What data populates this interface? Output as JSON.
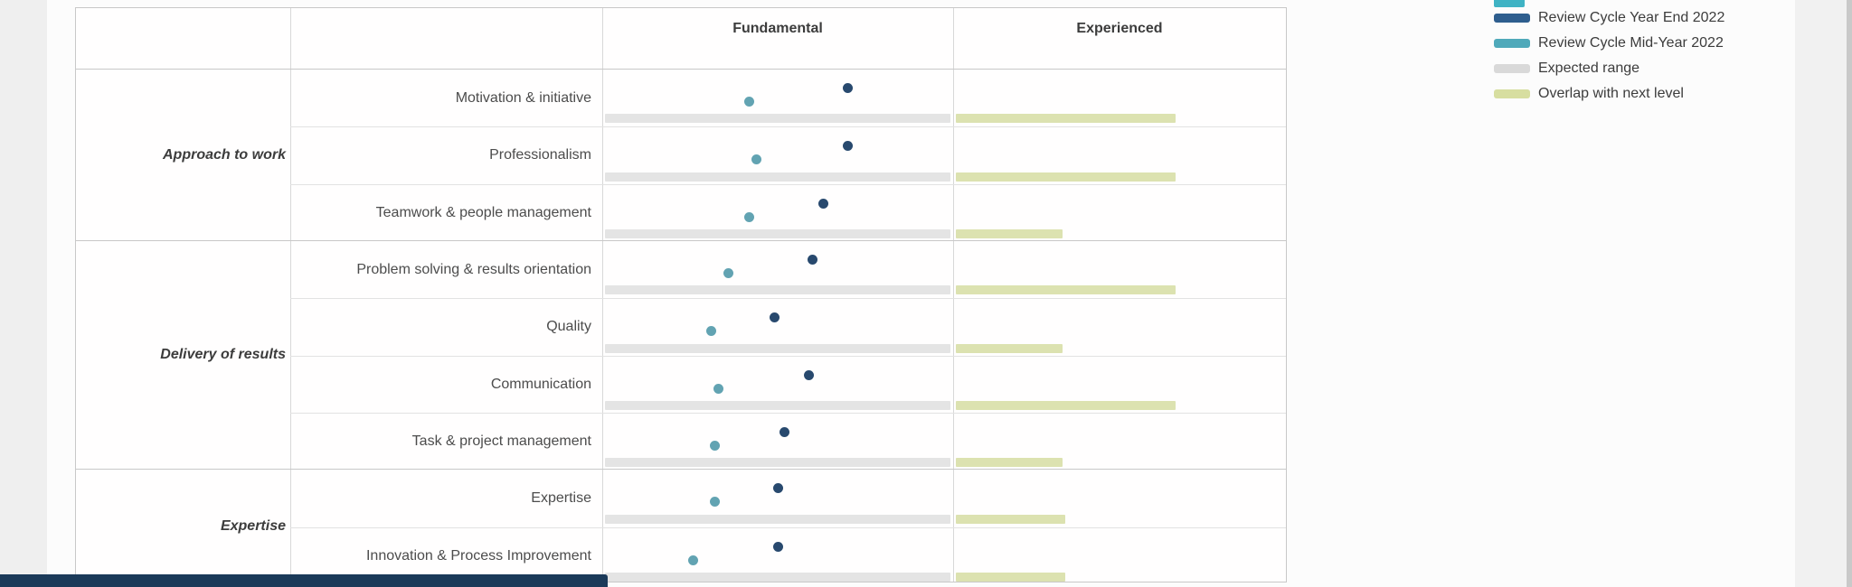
{
  "table": {
    "column_headers": [
      {
        "label": "Fundamental"
      },
      {
        "label": "Experienced"
      }
    ]
  },
  "legend": {
    "items": [
      {
        "label": "Review Cycle Year End 2022",
        "color": "#2e5e8e"
      },
      {
        "label": "Review Cycle Mid-Year 2022",
        "color": "#4fa9ba"
      },
      {
        "label": "Expected range",
        "color": "#d9d9d9"
      },
      {
        "label": "Overlap with next level",
        "color": "#d7dea0"
      }
    ]
  },
  "colors": {
    "year_end_dot": "#28496e",
    "mid_year_dot": "#62a3b2",
    "expected_range_bar": "#e4e4e4",
    "overlap_bar": "#dce2b0",
    "bottom_bar": "#1b3a59",
    "partial_top_swatch": "#3fb3c4"
  },
  "chart_data": {
    "type": "scatter",
    "title": "",
    "column_bands": [
      "Fundamental",
      "Experienced"
    ],
    "x_scale_note": "0 = left edge of Fundamental band, 1 = Fundamental/Experienced boundary, 2 = right edge of Experienced band; values estimated from pixel positions",
    "legend_position": "top-right",
    "series": [
      {
        "name": "Review Cycle Year End 2022",
        "mark": "dot"
      },
      {
        "name": "Review Cycle Mid-Year 2022",
        "mark": "dot"
      },
      {
        "name": "Expected range",
        "mark": "bar"
      },
      {
        "name": "Overlap with next level",
        "mark": "bar"
      }
    ],
    "rows": [
      {
        "category": "Approach to work",
        "label": "Motivation & initiative",
        "year_end": 0.7,
        "mid_year": 0.42,
        "expected_range": [
          0,
          1
        ],
        "overlap": [
          1,
          1.66
        ]
      },
      {
        "category": "Approach to work",
        "label": "Professionalism",
        "year_end": 0.7,
        "mid_year": 0.44,
        "expected_range": [
          0,
          1
        ],
        "overlap": [
          1,
          1.66
        ]
      },
      {
        "category": "Approach to work",
        "label": "Teamwork & people management",
        "year_end": 0.63,
        "mid_year": 0.42,
        "expected_range": [
          0,
          1
        ],
        "overlap": [
          1,
          1.32
        ]
      },
      {
        "category": "Delivery of results",
        "label": "Problem solving & results orientation",
        "year_end": 0.6,
        "mid_year": 0.36,
        "expected_range": [
          0,
          1
        ],
        "overlap": [
          1,
          1.66
        ]
      },
      {
        "category": "Delivery of results",
        "label": "Quality",
        "year_end": 0.49,
        "mid_year": 0.31,
        "expected_range": [
          0,
          1
        ],
        "overlap": [
          1,
          1.32
        ]
      },
      {
        "category": "Delivery of results",
        "label": "Communication",
        "year_end": 0.59,
        "mid_year": 0.33,
        "expected_range": [
          0,
          1
        ],
        "overlap": [
          1,
          1.66
        ]
      },
      {
        "category": "Delivery of results",
        "label": "Task & project management",
        "year_end": 0.52,
        "mid_year": 0.32,
        "expected_range": [
          0,
          1
        ],
        "overlap": [
          1,
          1.32
        ]
      },
      {
        "category": "Expertise",
        "label": "Expertise",
        "year_end": 0.5,
        "mid_year": 0.32,
        "expected_range": [
          0,
          1
        ],
        "overlap": [
          1,
          1.33
        ]
      },
      {
        "category": "Expertise",
        "label": "Innovation & Process Improvement",
        "year_end": 0.5,
        "mid_year": 0.26,
        "expected_range": [
          0,
          1
        ],
        "overlap": [
          1,
          1.33
        ]
      }
    ]
  }
}
